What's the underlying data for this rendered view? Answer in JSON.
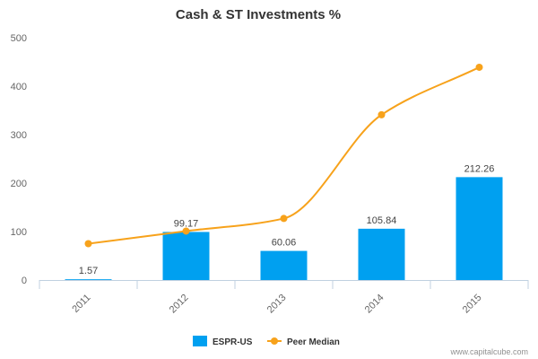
{
  "chart_data": {
    "type": "bar",
    "title": "Cash & ST Investments %",
    "categories": [
      "2011",
      "2012",
      "2013",
      "2014",
      "2015"
    ],
    "ylim": [
      0,
      500
    ],
    "yticks": [
      0,
      100,
      200,
      300,
      400,
      500
    ],
    "grid": false,
    "legend_position": "bottom-center",
    "series": [
      {
        "name": "ESPR-US",
        "type": "bar",
        "color": "#00a0f0",
        "values": [
          1.57,
          99.17,
          60.06,
          105.84,
          212.26
        ],
        "labels": [
          "1.57",
          "99.17",
          "60.06",
          "105.84",
          "212.26"
        ]
      },
      {
        "name": "Peer Median",
        "type": "line",
        "color": "#f7a21b",
        "smooth": true,
        "marker": "circle",
        "values": [
          75,
          101,
          127,
          341,
          439
        ]
      }
    ]
  },
  "credit": "www.capitalcube.com"
}
